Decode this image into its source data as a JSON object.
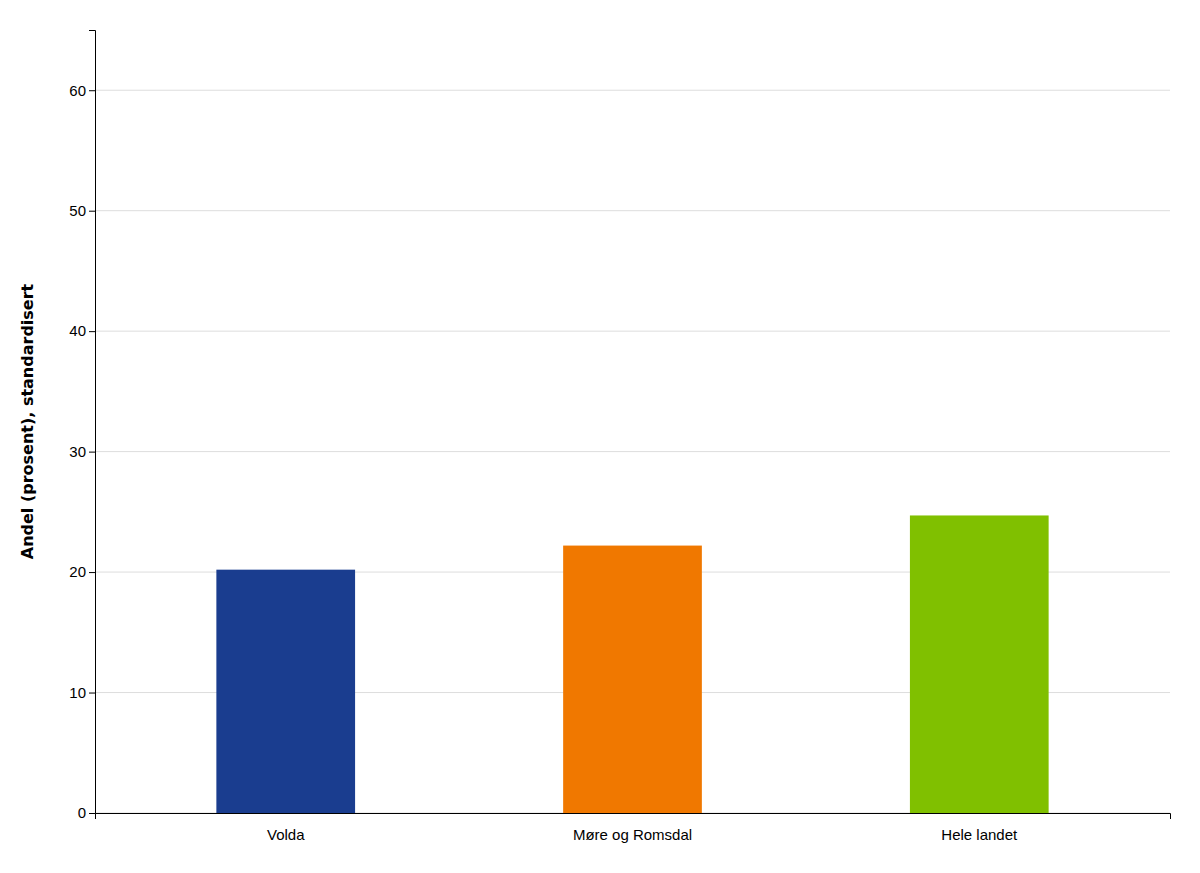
{
  "chart_data": {
    "type": "bar",
    "categories": [
      "Volda",
      "Møre og Romsdal",
      "Hele landet"
    ],
    "values": [
      20.2,
      22.2,
      24.7
    ],
    "colors": [
      "#1a3d8f",
      "#f07800",
      "#80c000"
    ],
    "ylabel": "Andel (prosent), standardisert",
    "ylim": [
      0,
      65
    ],
    "yticks": [
      0,
      10,
      20,
      30,
      40,
      50,
      60
    ],
    "grid": true
  }
}
